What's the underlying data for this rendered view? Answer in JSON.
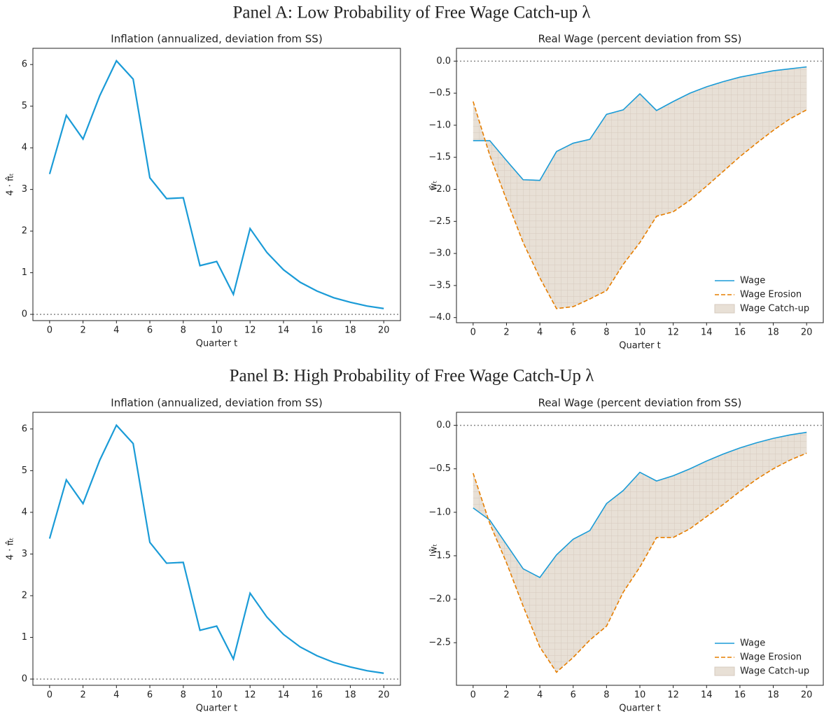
{
  "panel_titles": [
    "Panel A: Low Probability of Free Wage Catch-up λ",
    "Panel B: High Probability of Free Wage Catch-Up λ"
  ],
  "chart_data": [
    {
      "type": "line",
      "title": "Inflation (annualized, deviation from SS)",
      "xlabel": "Quarter t",
      "ylabel": "4 · π̂ₜ",
      "x": [
        0,
        1,
        2,
        3,
        4,
        5,
        6,
        7,
        8,
        9,
        10,
        11,
        12,
        13,
        14,
        15,
        16,
        17,
        18,
        19,
        20
      ],
      "series": [
        {
          "name": "Inflation",
          "color": "#1a9bd7",
          "style": "solid",
          "values": [
            3.37,
            4.78,
            4.21,
            5.25,
            6.09,
            5.65,
            3.28,
            2.78,
            2.8,
            1.17,
            1.27,
            0.48,
            2.06,
            1.49,
            1.07,
            0.77,
            0.56,
            0.4,
            0.29,
            0.2,
            0.14
          ]
        }
      ],
      "xlim": [
        -1,
        21
      ],
      "ylim": [
        -0.15,
        6.39
      ],
      "xticks": [
        0,
        2,
        4,
        6,
        8,
        10,
        12,
        14,
        16,
        18,
        20
      ],
      "yticks": [
        0,
        1,
        2,
        3,
        4,
        5,
        6
      ],
      "hline": 0
    },
    {
      "type": "line",
      "title": "Real Wage (percent deviation from SS)",
      "xlabel": "Quarter t",
      "ylabel": "ŵₜ",
      "x": [
        0,
        1,
        2,
        3,
        4,
        5,
        6,
        7,
        8,
        9,
        10,
        11,
        12,
        13,
        14,
        15,
        16,
        17,
        18,
        19,
        20
      ],
      "series": [
        {
          "name": "Wage",
          "color": "#1a9bd7",
          "style": "solid",
          "values": [
            -1.24,
            -1.24,
            -1.55,
            -1.85,
            -1.86,
            -1.41,
            -1.28,
            -1.22,
            -0.83,
            -0.76,
            -0.51,
            -0.77,
            -0.63,
            -0.5,
            -0.4,
            -0.32,
            -0.25,
            -0.2,
            -0.15,
            -0.12,
            -0.09
          ]
        },
        {
          "name": "Wage Erosion",
          "color": "#e67e00",
          "style": "dashed",
          "values": [
            -0.63,
            -1.47,
            -2.16,
            -2.83,
            -3.38,
            -3.86,
            -3.83,
            -3.71,
            -3.58,
            -3.17,
            -2.83,
            -2.42,
            -2.35,
            -2.17,
            -1.95,
            -1.72,
            -1.49,
            -1.28,
            -1.08,
            -0.9,
            -0.76
          ]
        }
      ],
      "fill": {
        "name": "Wage Catch-up",
        "color": "#e8e0d6"
      },
      "legend": "lower right",
      "xlim": [
        -1,
        21
      ],
      "ylim": [
        -4.08,
        0.2
      ],
      "xticks": [
        0,
        2,
        4,
        6,
        8,
        10,
        12,
        14,
        16,
        18,
        20
      ],
      "yticks": [
        {
          "value": 0,
          "label": "0.0"
        },
        {
          "value": -0.5,
          "label": "−0.5"
        },
        {
          "value": -1,
          "label": "−1.0"
        },
        {
          "value": -1.5,
          "label": "−1.5"
        },
        {
          "value": -2,
          "label": "−2.0"
        },
        {
          "value": -2.5,
          "label": "−2.5"
        },
        {
          "value": -3,
          "label": "−3.0"
        },
        {
          "value": -3.5,
          "label": "−3.5"
        },
        {
          "value": -4,
          "label": "−4.0"
        }
      ],
      "hline": 0
    },
    {
      "type": "line",
      "title": "Inflation (annualized, deviation from SS)",
      "xlabel": "Quarter t",
      "ylabel": "4 · π̂ₜ",
      "x": [
        0,
        1,
        2,
        3,
        4,
        5,
        6,
        7,
        8,
        9,
        10,
        11,
        12,
        13,
        14,
        15,
        16,
        17,
        18,
        19,
        20
      ],
      "series": [
        {
          "name": "Inflation",
          "color": "#1a9bd7",
          "style": "solid",
          "values": [
            3.37,
            4.78,
            4.21,
            5.25,
            6.09,
            5.65,
            3.28,
            2.78,
            2.8,
            1.17,
            1.27,
            0.48,
            2.06,
            1.49,
            1.07,
            0.77,
            0.56,
            0.4,
            0.29,
            0.2,
            0.14
          ]
        }
      ],
      "xlim": [
        -1,
        21
      ],
      "ylim": [
        -0.15,
        6.4
      ],
      "xticks": [
        0,
        2,
        4,
        6,
        8,
        10,
        12,
        14,
        16,
        18,
        20
      ],
      "yticks": [
        0,
        1,
        2,
        3,
        4,
        5,
        6
      ],
      "hline": 0
    },
    {
      "type": "line",
      "title": "Real Wage (percent deviation from SS)",
      "xlabel": "Quarter t",
      "ylabel": "ŵₜ",
      "x": [
        0,
        1,
        2,
        3,
        4,
        5,
        6,
        7,
        8,
        9,
        10,
        11,
        12,
        13,
        14,
        15,
        16,
        17,
        18,
        19,
        20
      ],
      "series": [
        {
          "name": "Wage",
          "color": "#1a9bd7",
          "style": "solid",
          "values": [
            -0.95,
            -1.09,
            -1.37,
            -1.65,
            -1.75,
            -1.49,
            -1.31,
            -1.21,
            -0.9,
            -0.75,
            -0.54,
            -0.64,
            -0.58,
            -0.5,
            -0.41,
            -0.33,
            -0.26,
            -0.2,
            -0.15,
            -0.11,
            -0.08
          ]
        },
        {
          "name": "Wage Erosion",
          "color": "#e67e00",
          "style": "dashed",
          "values": [
            -0.55,
            -1.13,
            -1.58,
            -2.08,
            -2.55,
            -2.84,
            -2.67,
            -2.47,
            -2.31,
            -1.92,
            -1.63,
            -1.29,
            -1.29,
            -1.19,
            -1.05,
            -0.91,
            -0.76,
            -0.62,
            -0.5,
            -0.4,
            -0.32
          ]
        }
      ],
      "fill": {
        "name": "Wage Catch-up",
        "color": "#e8e0d6"
      },
      "legend": "lower right",
      "xlim": [
        -1,
        21
      ],
      "ylim": [
        -2.99,
        0.15
      ],
      "xticks": [
        0,
        2,
        4,
        6,
        8,
        10,
        12,
        14,
        16,
        18,
        20
      ],
      "yticks": [
        {
          "value": 0,
          "label": "0.0"
        },
        {
          "value": -0.5,
          "label": "−0.5"
        },
        {
          "value": -1,
          "label": "−1.0"
        },
        {
          "value": -1.5,
          "label": "−1.5"
        },
        {
          "value": -2,
          "label": "−2.0"
        },
        {
          "value": -2.5,
          "label": "−2.5"
        }
      ],
      "hline": 0
    }
  ]
}
